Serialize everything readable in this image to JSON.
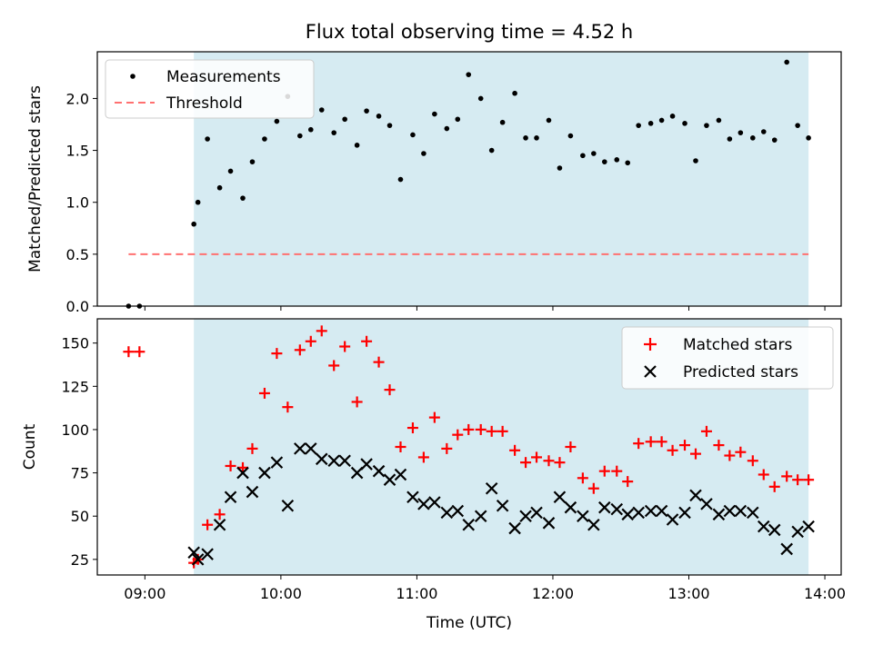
{
  "chart_data": [
    {
      "type": "scatter",
      "title": "Flux total observing time = 4.52 h",
      "ylabel": "Matched/Predicted stars",
      "xlabel": "",
      "ylim": [
        0,
        2.45
      ],
      "xlim": [
        8.65,
        14.12
      ],
      "yticks": [
        0.0,
        0.5,
        1.0,
        1.5,
        2.0
      ],
      "ytick_labels": [
        "0.0",
        "0.5",
        "1.0",
        "1.5",
        "2.0"
      ],
      "xticks": [
        9,
        10,
        11,
        12,
        13,
        14
      ],
      "shaded_span": [
        9.36,
        13.88
      ],
      "shade_color": "#add8e6",
      "legend_position": "top-left",
      "grid": false,
      "series": [
        {
          "name": "Measurements",
          "kind": "scatter",
          "marker": "dot",
          "color": "#000000",
          "x": [
            8.88,
            8.96,
            9.36,
            9.39,
            9.46,
            9.55,
            9.63,
            9.72,
            9.79,
            9.88,
            9.97,
            10.05,
            10.14,
            10.22,
            10.3,
            10.39,
            10.47,
            10.56,
            10.63,
            10.72,
            10.8,
            10.88,
            10.97,
            11.05,
            11.13,
            11.22,
            11.3,
            11.38,
            11.47,
            11.55,
            11.63,
            11.72,
            11.8,
            11.88,
            11.97,
            12.05,
            12.13,
            12.22,
            12.3,
            12.38,
            12.47,
            12.55,
            12.63,
            12.72,
            12.8,
            12.88,
            12.97,
            13.05,
            13.13,
            13.22,
            13.3,
            13.38,
            13.47,
            13.55,
            13.63,
            13.72,
            13.8,
            13.88
          ],
          "y": [
            0.0,
            0.0,
            0.79,
            1.0,
            1.61,
            1.14,
            1.3,
            1.04,
            1.39,
            1.61,
            1.78,
            2.02,
            1.64,
            1.7,
            1.89,
            1.67,
            1.8,
            1.55,
            1.88,
            1.83,
            1.74,
            1.22,
            1.65,
            1.47,
            1.85,
            1.71,
            1.8,
            2.23,
            2.0,
            1.5,
            1.77,
            2.05,
            1.62,
            1.62,
            1.79,
            1.33,
            1.64,
            1.45,
            1.47,
            1.39,
            1.41,
            1.38,
            1.74,
            1.76,
            1.79,
            1.83,
            1.76,
            1.4,
            1.74,
            1.79,
            1.61,
            1.67,
            1.62,
            1.68,
            1.6,
            2.35,
            1.74,
            1.62
          ]
        },
        {
          "name": "Threshold",
          "kind": "line",
          "dash": true,
          "color": "#ff7070",
          "x": [
            8.88,
            13.88
          ],
          "y": [
            0.5,
            0.5
          ]
        }
      ]
    },
    {
      "type": "scatter",
      "title": "",
      "ylabel": "Count",
      "xlabel": "Time (UTC)",
      "ylim": [
        16,
        164
      ],
      "xlim": [
        8.65,
        14.12
      ],
      "yticks": [
        25,
        50,
        75,
        100,
        125,
        150
      ],
      "ytick_labels": [
        "25",
        "50",
        "75",
        "100",
        "125",
        "150"
      ],
      "xticks": [
        9,
        10,
        11,
        12,
        13,
        14
      ],
      "xtick_labels": [
        "09:00",
        "10:00",
        "11:00",
        "12:00",
        "13:00",
        "14:00"
      ],
      "shaded_span": [
        9.36,
        13.88
      ],
      "shade_color": "#add8e6",
      "legend_position": "top-right",
      "grid": false,
      "series": [
        {
          "name": "Matched stars",
          "kind": "scatter",
          "marker": "plus",
          "color": "#ff0000",
          "x": [
            8.88,
            8.96,
            9.36,
            9.39,
            9.46,
            9.55,
            9.63,
            9.72,
            9.79,
            9.88,
            9.97,
            10.05,
            10.14,
            10.22,
            10.3,
            10.39,
            10.47,
            10.56,
            10.63,
            10.72,
            10.8,
            10.88,
            10.97,
            11.05,
            11.13,
            11.22,
            11.3,
            11.38,
            11.47,
            11.55,
            11.63,
            11.72,
            11.8,
            11.88,
            11.97,
            12.05,
            12.13,
            12.22,
            12.3,
            12.38,
            12.47,
            12.55,
            12.63,
            12.72,
            12.8,
            12.88,
            12.97,
            13.05,
            13.13,
            13.22,
            13.3,
            13.38,
            13.47,
            13.55,
            13.63,
            13.72,
            13.8,
            13.88
          ],
          "y": [
            145,
            145,
            23,
            25,
            45,
            51,
            79,
            78,
            89,
            121,
            144,
            113,
            146,
            151,
            157,
            137,
            148,
            116,
            151,
            139,
            123,
            90,
            101,
            84,
            107,
            89,
            97,
            100,
            100,
            99,
            99,
            88,
            81,
            84,
            82,
            81,
            90,
            72,
            66,
            76,
            76,
            70,
            92,
            93,
            93,
            88,
            91,
            86,
            99,
            91,
            85,
            87,
            82,
            74,
            67,
            73,
            71,
            71
          ]
        },
        {
          "name": "Predicted stars",
          "kind": "scatter",
          "marker": "x",
          "color": "#000000",
          "x": [
            9.36,
            9.39,
            9.46,
            9.55,
            9.63,
            9.72,
            9.79,
            9.88,
            9.97,
            10.05,
            10.14,
            10.22,
            10.3,
            10.39,
            10.47,
            10.56,
            10.63,
            10.72,
            10.8,
            10.88,
            10.97,
            11.05,
            11.13,
            11.22,
            11.3,
            11.38,
            11.47,
            11.55,
            11.63,
            11.72,
            11.8,
            11.88,
            11.97,
            12.05,
            12.13,
            12.22,
            12.3,
            12.38,
            12.47,
            12.55,
            12.63,
            12.72,
            12.8,
            12.88,
            12.97,
            13.05,
            13.13,
            13.22,
            13.3,
            13.38,
            13.47,
            13.55,
            13.63,
            13.72,
            13.8,
            13.88
          ],
          "y": [
            29,
            25,
            28,
            45,
            61,
            75,
            64,
            75,
            81,
            56,
            89,
            89,
            83,
            82,
            82,
            75,
            80,
            76,
            71,
            74,
            61,
            57,
            58,
            52,
            53,
            45,
            50,
            66,
            56,
            43,
            50,
            52,
            46,
            61,
            55,
            50,
            45,
            55,
            54,
            51,
            52,
            53,
            53,
            48,
            52,
            62,
            57,
            51,
            53,
            53,
            52,
            44,
            42,
            31,
            41,
            44
          ]
        }
      ]
    }
  ]
}
